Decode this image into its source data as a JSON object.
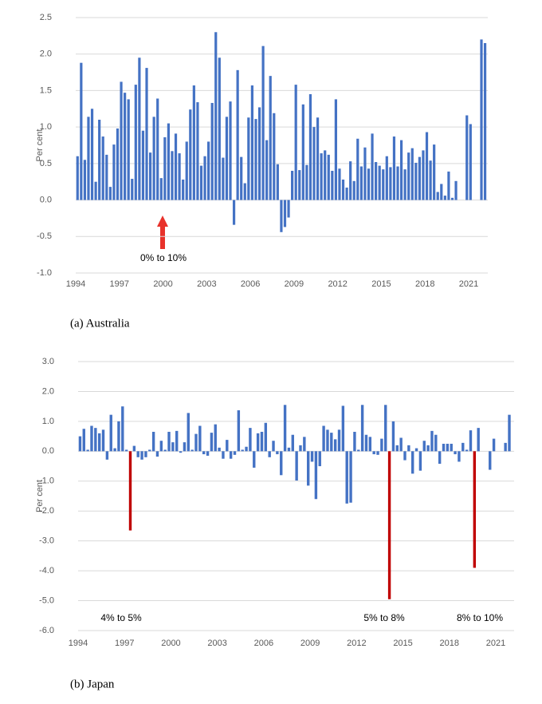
{
  "chart_data": [
    {
      "type": "bar",
      "caption": "(a) Australia",
      "ylabel": "Per cent",
      "color": "#4472c4",
      "grid": true,
      "ylim": [
        -1,
        2.5
      ],
      "yticks": [
        {
          "value": -1,
          "label": "-1.0"
        },
        -0.5,
        {
          "value": 0,
          "label": "0.0"
        },
        0.5,
        {
          "value": 1,
          "label": "1.0"
        },
        1.5,
        {
          "value": 2,
          "label": "2.0"
        },
        2.5
      ],
      "categories": [
        "1994",
        null,
        null,
        null,
        null,
        null,
        null,
        null,
        null,
        null,
        null,
        null,
        "1997",
        null,
        null,
        null,
        null,
        null,
        null,
        null,
        null,
        null,
        null,
        null,
        "2000",
        null,
        null,
        null,
        null,
        null,
        null,
        null,
        null,
        null,
        null,
        null,
        "2003",
        null,
        null,
        null,
        null,
        null,
        null,
        null,
        null,
        null,
        null,
        null,
        "2006",
        null,
        null,
        null,
        null,
        null,
        null,
        null,
        null,
        null,
        null,
        null,
        "2009",
        null,
        null,
        null,
        null,
        null,
        null,
        null,
        null,
        null,
        null,
        null,
        "2012",
        null,
        null,
        null,
        null,
        null,
        null,
        null,
        null,
        null,
        null,
        null,
        "2015",
        null,
        null,
        null,
        null,
        null,
        null,
        null,
        null,
        null,
        null,
        null,
        "2018",
        null,
        null,
        null,
        null,
        null,
        null,
        null,
        null,
        null,
        null,
        null,
        "2021",
        null,
        null,
        null,
        null
      ],
      "values": [
        0.6,
        1.88,
        0.55,
        1.14,
        1.25,
        0.25,
        1.1,
        0.87,
        0.62,
        0.18,
        0.76,
        0.98,
        1.62,
        1.47,
        1.38,
        0.29,
        1.58,
        1.95,
        0.95,
        1.81,
        0.65,
        1.14,
        1.39,
        0.3,
        0.86,
        1.05,
        0.67,
        0.91,
        0.64,
        0.28,
        0.8,
        1.24,
        1.57,
        1.34,
        0.47,
        0.6,
        0.8,
        1.33,
        2.3,
        1.95,
        0.58,
        1.14,
        1.35,
        -0.34,
        1.78,
        0.59,
        0.23,
        1.13,
        1.57,
        1.11,
        1.27,
        2.11,
        0.82,
        1.7,
        1.19,
        0.49,
        -0.44,
        -0.37,
        -0.24,
        0.4,
        1.58,
        0.41,
        1.31,
        0.48,
        1.45,
        1.0,
        1.13,
        0.64,
        0.68,
        0.62,
        0.4,
        1.38,
        0.43,
        0.28,
        0.17,
        0.53,
        0.26,
        0.84,
        0.46,
        0.72,
        0.43,
        0.91,
        0.52,
        0.47,
        0.42,
        0.6,
        0.45,
        0.87,
        0.46,
        0.82,
        0.42,
        0.65,
        0.71,
        0.51,
        0.59,
        0.68,
        0.93,
        0.54,
        0.76,
        0.11,
        0.22,
        0.06,
        0.39,
        0.03,
        0.26,
        null,
        null,
        1.16,
        1.04,
        null,
        null,
        2.2,
        2.15
      ],
      "annotations": [
        "0% to 10%"
      ]
    },
    {
      "type": "bar",
      "caption": "(b) Japan",
      "ylabel": "Per cent",
      "color": "#4472c4",
      "grid": true,
      "highlight": {
        "13": "#c00000",
        "80": "#c00000",
        "102": "#c00000"
      },
      "ylim": [
        -6,
        3
      ],
      "yticks": [
        {
          "value": -6,
          "label": "-6.0"
        },
        {
          "value": -5,
          "label": "-5.0"
        },
        {
          "value": -4,
          "label": "-4.0"
        },
        {
          "value": -3,
          "label": "-3.0"
        },
        {
          "value": -2,
          "label": "-2.0"
        },
        {
          "value": -1,
          "label": "-1.0"
        },
        {
          "value": 0,
          "label": "0.0"
        },
        {
          "value": 1,
          "label": "1.0"
        },
        {
          "value": 2,
          "label": "2.0"
        },
        {
          "value": 3,
          "label": "3.0"
        }
      ],
      "categories": [
        "1994",
        null,
        null,
        null,
        null,
        null,
        null,
        null,
        null,
        null,
        null,
        null,
        "1997",
        null,
        null,
        null,
        null,
        null,
        null,
        null,
        null,
        null,
        null,
        null,
        "2000",
        null,
        null,
        null,
        null,
        null,
        null,
        null,
        null,
        null,
        null,
        null,
        "2003",
        null,
        null,
        null,
        null,
        null,
        null,
        null,
        null,
        null,
        null,
        null,
        "2006",
        null,
        null,
        null,
        null,
        null,
        null,
        null,
        null,
        null,
        null,
        null,
        "2009",
        null,
        null,
        null,
        null,
        null,
        null,
        null,
        null,
        null,
        null,
        null,
        "2012",
        null,
        null,
        null,
        null,
        null,
        null,
        null,
        null,
        null,
        null,
        null,
        "2015",
        null,
        null,
        null,
        null,
        null,
        null,
        null,
        null,
        null,
        null,
        null,
        "2018",
        null,
        null,
        null,
        null,
        null,
        null,
        null,
        null,
        null,
        null,
        null,
        "2021",
        null,
        null,
        null
      ],
      "values": [
        0.5,
        0.75,
        0.05,
        0.85,
        0.78,
        0.6,
        0.72,
        -0.28,
        1.22,
        0.1,
        1.0,
        1.5,
        0.05,
        -2.65,
        0.18,
        -0.2,
        -0.28,
        -0.2,
        0.05,
        0.65,
        -0.18,
        0.35,
        0.05,
        0.65,
        0.3,
        0.68,
        -0.05,
        0.3,
        1.28,
        0.05,
        0.58,
        0.85,
        -0.1,
        -0.15,
        0.62,
        0.9,
        0.12,
        -0.25,
        0.38,
        -0.25,
        -0.12,
        1.37,
        0.05,
        0.15,
        0.78,
        -0.55,
        0.6,
        0.65,
        0.95,
        -0.2,
        0.35,
        -0.1,
        -0.8,
        1.55,
        0.12,
        0.55,
        -0.98,
        0.2,
        0.48,
        -1.15,
        -0.35,
        -1.6,
        -0.5,
        0.85,
        0.72,
        0.62,
        0.4,
        0.72,
        1.52,
        -1.75,
        -1.72,
        0.65,
        0.05,
        1.55,
        0.55,
        0.48,
        -0.1,
        -0.12,
        0.42,
        1.55,
        -4.95,
        1.0,
        0.2,
        0.45,
        -0.3,
        0.2,
        -0.75,
        0.1,
        -0.65,
        0.35,
        0.2,
        0.68,
        0.55,
        -0.42,
        0.25,
        0.25,
        0.25,
        -0.1,
        -0.35,
        0.28,
        0.05,
        0.7,
        -3.9,
        0.78,
        null,
        null,
        -0.62,
        0.42,
        null,
        null,
        0.28,
        1.22
      ],
      "annotations": [
        "4% to 5%",
        "5% to 8%",
        "8% to 10%"
      ]
    }
  ]
}
